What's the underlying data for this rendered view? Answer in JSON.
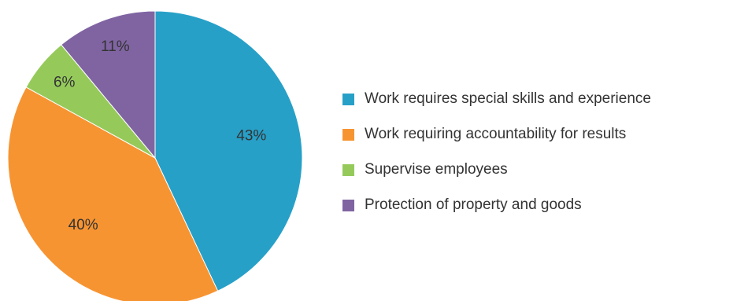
{
  "chart_data": {
    "type": "pie",
    "title": "",
    "legend_position": "right",
    "slices": [
      {
        "label": "Work requires special skills and experience",
        "value": 43,
        "display": "43%",
        "color": "#27A0C8"
      },
      {
        "label": "Work requiring accountability for results",
        "value": 40,
        "display": "40%",
        "color": "#F79432"
      },
      {
        "label": "Supervise employees",
        "value": 6,
        "display": "6%",
        "color": "#95CA5B"
      },
      {
        "label": "Protection of property and goods",
        "value": 11,
        "display": "11%",
        "color": "#8064A2"
      }
    ]
  }
}
